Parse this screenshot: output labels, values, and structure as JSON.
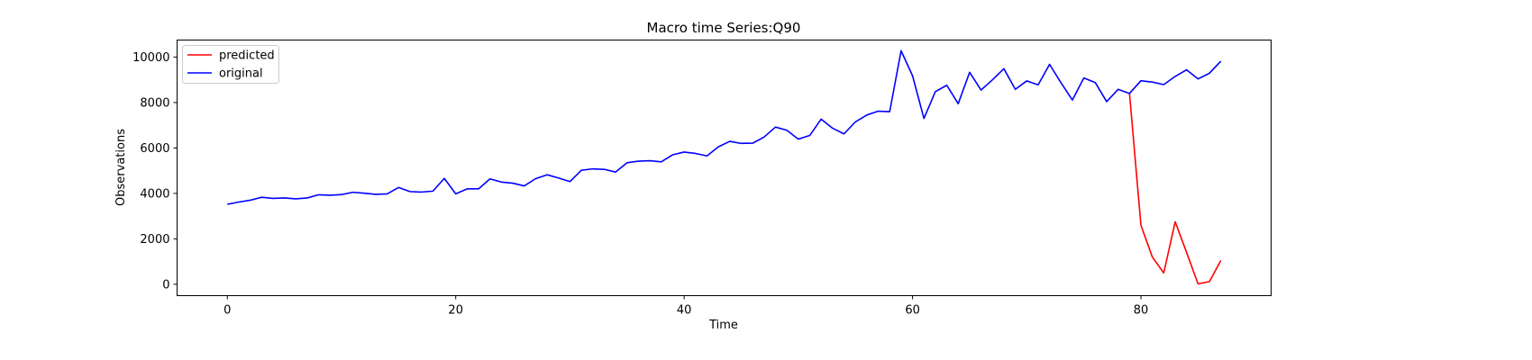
{
  "chart_data": {
    "type": "line",
    "title": "Macro time Series:Q90",
    "xlabel": "Time",
    "ylabel": "Observations",
    "xlim": [
      -4.4,
      91.4
    ],
    "ylim": [
      -500,
      10750
    ],
    "xticks": [
      0,
      20,
      40,
      60,
      80
    ],
    "yticks": [
      0,
      2000,
      4000,
      6000,
      8000,
      10000
    ],
    "grid": false,
    "legend_position": "upper-left",
    "series": [
      {
        "name": "predicted",
        "color": "#ff0000",
        "x": [
          79,
          80,
          81,
          82,
          83,
          84,
          85,
          86,
          87
        ],
        "values": [
          8400,
          2600,
          1200,
          500,
          2750,
          1400,
          20,
          120,
          1050
        ]
      },
      {
        "name": "original",
        "color": "#0000ff",
        "x": [
          0,
          1,
          2,
          3,
          4,
          5,
          6,
          7,
          8,
          9,
          10,
          11,
          12,
          13,
          14,
          15,
          16,
          17,
          18,
          19,
          20,
          21,
          22,
          23,
          24,
          25,
          26,
          27,
          28,
          29,
          30,
          31,
          32,
          33,
          34,
          35,
          36,
          37,
          38,
          39,
          40,
          41,
          42,
          43,
          44,
          45,
          46,
          47,
          48,
          49,
          50,
          51,
          52,
          53,
          54,
          55,
          56,
          57,
          58,
          59,
          60,
          61,
          62,
          63,
          64,
          65,
          66,
          67,
          68,
          69,
          70,
          71,
          72,
          73,
          74,
          75,
          76,
          77,
          78,
          79,
          80,
          81,
          82,
          83,
          84,
          85,
          86,
          87
        ],
        "values": [
          3520,
          3620,
          3700,
          3830,
          3780,
          3800,
          3760,
          3800,
          3940,
          3920,
          3950,
          4050,
          4010,
          3960,
          3980,
          4260,
          4080,
          4060,
          4100,
          4660,
          3980,
          4200,
          4200,
          4640,
          4500,
          4450,
          4330,
          4650,
          4820,
          4680,
          4520,
          5020,
          5080,
          5060,
          4940,
          5350,
          5420,
          5440,
          5390,
          5700,
          5820,
          5760,
          5650,
          6050,
          6290,
          6200,
          6210,
          6480,
          6920,
          6780,
          6390,
          6550,
          7270,
          6870,
          6620,
          7150,
          7450,
          7620,
          7600,
          10280,
          9180,
          7300,
          8480,
          8760,
          7950,
          9330,
          8550,
          9000,
          9490,
          8580,
          8950,
          8780,
          9680,
          8870,
          8110,
          9080,
          8880,
          8040,
          8580,
          8400,
          8960,
          8900,
          8790,
          9150,
          9440,
          9040,
          9290,
          9820
        ]
      }
    ]
  }
}
